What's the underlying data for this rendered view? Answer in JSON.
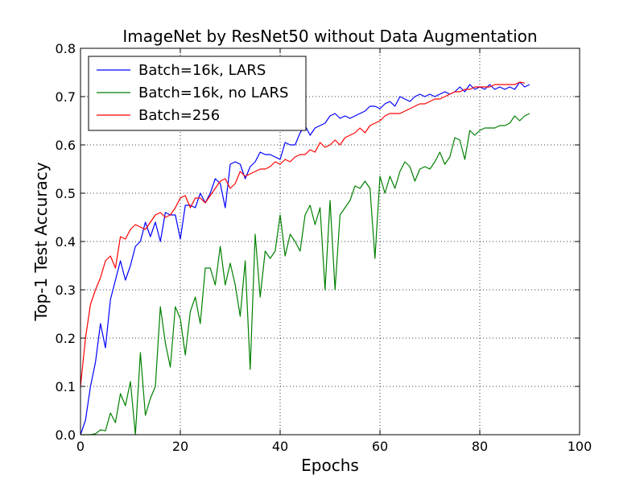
{
  "chart_data": {
    "type": "line",
    "title": "ImageNet by ResNet50 without Data Augmentation",
    "xlabel": "Epochs",
    "ylabel": "Top-1 Test Accuracy",
    "xlim": [
      0,
      100
    ],
    "ylim": [
      0.0,
      0.8
    ],
    "xticks": [
      0,
      20,
      40,
      60,
      80,
      100
    ],
    "yticks": [
      0.0,
      0.1,
      0.2,
      0.3,
      0.4,
      0.5,
      0.6,
      0.7,
      0.8
    ],
    "xtick_labels": [
      "0",
      "20",
      "40",
      "60",
      "80",
      "100"
    ],
    "ytick_labels": [
      "0.0",
      "0.1",
      "0.2",
      "0.3",
      "0.4",
      "0.5",
      "0.6",
      "0.7",
      "0.8"
    ],
    "grid": true,
    "legend_position": "top-left",
    "series": [
      {
        "name": "Batch=16k, LARS",
        "color": "#0000ff",
        "x": [
          0,
          1,
          2,
          3,
          4,
          5,
          6,
          7,
          8,
          9,
          10,
          11,
          12,
          13,
          14,
          15,
          16,
          17,
          18,
          19,
          20,
          21,
          22,
          23,
          24,
          25,
          26,
          27,
          28,
          29,
          30,
          31,
          32,
          33,
          34,
          35,
          36,
          37,
          38,
          39,
          40,
          41,
          42,
          43,
          44,
          45,
          46,
          47,
          48,
          49,
          50,
          51,
          52,
          53,
          54,
          55,
          56,
          57,
          58,
          59,
          60,
          61,
          62,
          63,
          64,
          65,
          66,
          67,
          68,
          69,
          70,
          71,
          72,
          73,
          74,
          75,
          76,
          77,
          78,
          79,
          80,
          81,
          82,
          83,
          84,
          85,
          86,
          87,
          88,
          89,
          90
        ],
        "y": [
          0.0,
          0.03,
          0.1,
          0.15,
          0.23,
          0.18,
          0.28,
          0.32,
          0.36,
          0.32,
          0.35,
          0.39,
          0.4,
          0.44,
          0.41,
          0.44,
          0.4,
          0.46,
          0.455,
          0.455,
          0.405,
          0.475,
          0.475,
          0.47,
          0.5,
          0.48,
          0.5,
          0.53,
          0.52,
          0.47,
          0.56,
          0.565,
          0.56,
          0.53,
          0.555,
          0.565,
          0.585,
          0.58,
          0.58,
          0.575,
          0.57,
          0.605,
          0.6,
          0.6,
          0.625,
          0.64,
          0.62,
          0.635,
          0.64,
          0.645,
          0.66,
          0.665,
          0.655,
          0.66,
          0.655,
          0.66,
          0.665,
          0.67,
          0.68,
          0.68,
          0.675,
          0.685,
          0.69,
          0.68,
          0.7,
          0.695,
          0.69,
          0.7,
          0.705,
          0.7,
          0.705,
          0.7,
          0.705,
          0.71,
          0.705,
          0.71,
          0.72,
          0.71,
          0.725,
          0.715,
          0.72,
          0.715,
          0.725,
          0.715,
          0.72,
          0.715,
          0.72,
          0.715,
          0.73,
          0.72,
          0.725
        ]
      },
      {
        "name": "Batch=16k, no LARS",
        "color": "#008000",
        "x": [
          0,
          1,
          2,
          3,
          4,
          5,
          6,
          7,
          8,
          9,
          10,
          11,
          12,
          13,
          14,
          15,
          16,
          17,
          18,
          19,
          20,
          21,
          22,
          23,
          24,
          25,
          26,
          27,
          28,
          29,
          30,
          31,
          32,
          33,
          34,
          35,
          36,
          37,
          38,
          39,
          40,
          41,
          42,
          43,
          44,
          45,
          46,
          47,
          48,
          49,
          50,
          51,
          52,
          53,
          54,
          55,
          56,
          57,
          58,
          59,
          60,
          61,
          62,
          63,
          64,
          65,
          66,
          67,
          68,
          69,
          70,
          71,
          72,
          73,
          74,
          75,
          76,
          77,
          78,
          79,
          80,
          81,
          82,
          83,
          84,
          85,
          86,
          87,
          88,
          89,
          90
        ],
        "y": [
          0.0,
          0.0,
          0.0,
          0.002,
          0.01,
          0.008,
          0.045,
          0.025,
          0.085,
          0.06,
          0.11,
          0.0,
          0.17,
          0.04,
          0.075,
          0.1,
          0.265,
          0.19,
          0.14,
          0.265,
          0.24,
          0.165,
          0.255,
          0.285,
          0.23,
          0.345,
          0.345,
          0.31,
          0.39,
          0.31,
          0.355,
          0.31,
          0.245,
          0.36,
          0.135,
          0.415,
          0.285,
          0.38,
          0.365,
          0.38,
          0.455,
          0.37,
          0.415,
          0.4,
          0.38,
          0.455,
          0.475,
          0.435,
          0.47,
          0.3,
          0.485,
          0.3,
          0.455,
          0.47,
          0.485,
          0.515,
          0.51,
          0.525,
          0.51,
          0.365,
          0.535,
          0.5,
          0.535,
          0.51,
          0.545,
          0.565,
          0.555,
          0.525,
          0.55,
          0.555,
          0.55,
          0.565,
          0.585,
          0.56,
          0.575,
          0.615,
          0.61,
          0.57,
          0.63,
          0.62,
          0.63,
          0.635,
          0.635,
          0.635,
          0.64,
          0.64,
          0.645,
          0.66,
          0.65,
          0.66,
          0.665
        ]
      },
      {
        "name": "Batch=256",
        "color": "#ff0000",
        "x": [
          0,
          1,
          2,
          3,
          4,
          5,
          6,
          7,
          8,
          9,
          10,
          11,
          12,
          13,
          14,
          15,
          16,
          17,
          18,
          19,
          20,
          21,
          22,
          23,
          24,
          25,
          26,
          27,
          28,
          29,
          30,
          31,
          32,
          33,
          34,
          35,
          36,
          37,
          38,
          39,
          40,
          41,
          42,
          43,
          44,
          45,
          46,
          47,
          48,
          49,
          50,
          51,
          52,
          53,
          54,
          55,
          56,
          57,
          58,
          59,
          60,
          61,
          62,
          63,
          64,
          65,
          66,
          67,
          68,
          69,
          70,
          71,
          72,
          73,
          74,
          75,
          76,
          77,
          78,
          79,
          80,
          81,
          82,
          83,
          84,
          85,
          86,
          87,
          88,
          89
        ],
        "y": [
          0.1,
          0.2,
          0.27,
          0.3,
          0.325,
          0.36,
          0.37,
          0.345,
          0.41,
          0.405,
          0.425,
          0.435,
          0.43,
          0.425,
          0.44,
          0.455,
          0.46,
          0.45,
          0.455,
          0.47,
          0.49,
          0.495,
          0.47,
          0.49,
          0.49,
          0.48,
          0.495,
          0.51,
          0.525,
          0.53,
          0.51,
          0.52,
          0.545,
          0.535,
          0.54,
          0.545,
          0.55,
          0.55,
          0.555,
          0.565,
          0.56,
          0.57,
          0.565,
          0.575,
          0.58,
          0.58,
          0.59,
          0.585,
          0.605,
          0.595,
          0.6,
          0.61,
          0.6,
          0.615,
          0.62,
          0.625,
          0.635,
          0.625,
          0.64,
          0.645,
          0.65,
          0.66,
          0.665,
          0.665,
          0.665,
          0.67,
          0.675,
          0.68,
          0.685,
          0.685,
          0.69,
          0.695,
          0.695,
          0.7,
          0.705,
          0.71,
          0.71,
          0.715,
          0.715,
          0.72,
          0.72,
          0.72,
          0.72,
          0.725,
          0.725,
          0.725,
          0.725,
          0.725,
          0.73,
          0.728
        ]
      }
    ]
  }
}
